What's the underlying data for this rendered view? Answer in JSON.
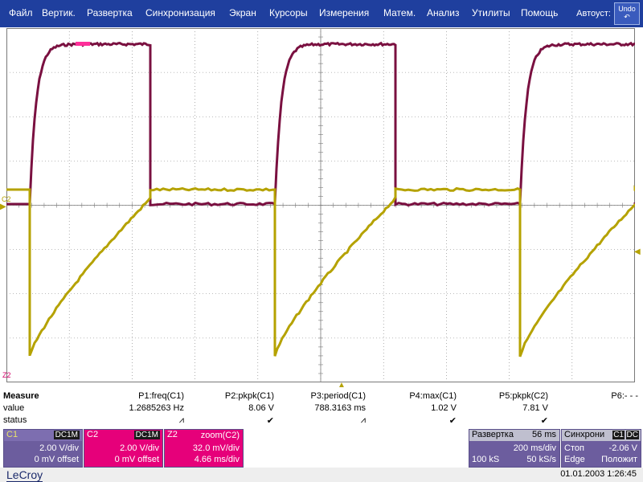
{
  "menu": [
    "Файл",
    "Вертик.",
    "Развертка",
    "Синхронизация",
    "Экран",
    "Курсоры",
    "Измерения",
    "Матем.",
    "Анализ",
    "Утилиты",
    "Помощь"
  ],
  "autoset_label": "Автоуст:",
  "undo_label": "Undo",
  "scope": {
    "c2_marker": "C2",
    "z2_marker": "Z2",
    "colors": {
      "c1": "#7a1040",
      "c2": "#b5a200",
      "grid": "#7a7a7a",
      "bg": "#ffffff"
    }
  },
  "measure": {
    "title": "Measure",
    "row_value": "value",
    "row_status": "status",
    "params": [
      {
        "name": "P1:freq(C1)",
        "value": "1.2685263 Hz",
        "status": "⩘"
      },
      {
        "name": "P2:pkpk(C1)",
        "value": "8.06 V",
        "status": "✔"
      },
      {
        "name": "P3:period(C1)",
        "value": "788.3163 ms",
        "status": "⩘"
      },
      {
        "name": "P4:max(C1)",
        "value": "1.02 V",
        "status": "✔"
      },
      {
        "name": "P5:pkpk(C2)",
        "value": "7.81 V",
        "status": "✔"
      },
      {
        "name": "P6:- - -",
        "value": "",
        "status": ""
      }
    ]
  },
  "channels": {
    "c1": {
      "label": "C1",
      "coupling": "DC1M",
      "vdiv": "2.00 V/div",
      "offset": "0 mV offset"
    },
    "c2": {
      "label": "C2",
      "coupling": "DC1M",
      "vdiv": "2.00 V/div",
      "offset": "0 mV offset"
    },
    "z2": {
      "label": "Z2",
      "source": "zoom(C2)",
      "vdiv": "32.0 mV/div",
      "tdiv": "4.66 ms/div"
    }
  },
  "timebase": {
    "label": "Развертка",
    "delay": "56 ms",
    "tdiv": "200 ms/div",
    "samples": "100 kS",
    "rate": "50 kS/s"
  },
  "trigger": {
    "label": "Синхрони",
    "tag1": "C1",
    "tag2": "DC",
    "mode": "Стоп",
    "level": "-2.06 V",
    "type": "Edge",
    "slope": "Положит"
  },
  "footer": {
    "logo": "LeCroy",
    "datetime": "01.01.2003 1:26:45"
  }
}
